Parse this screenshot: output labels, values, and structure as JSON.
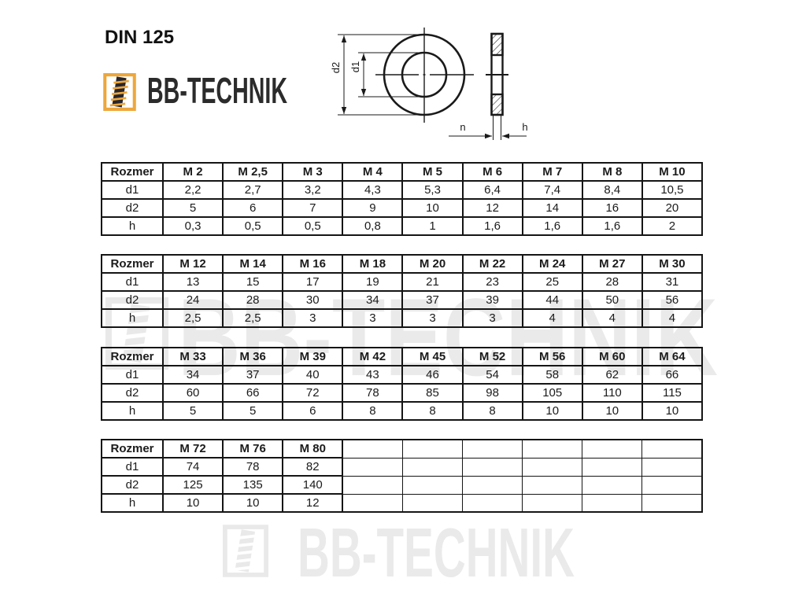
{
  "page": {
    "title": "DIN 125",
    "brand": "BB-TECHNIK",
    "watermark_text": "BB-TECHNIK"
  },
  "colors": {
    "logo_gold": "#EDA73C",
    "logo_dark": "#26262E",
    "brand_text": "#2B2B2B",
    "watermark_gray": "#EAEAEA",
    "line_black": "#1A1A1A"
  },
  "drawing": {
    "labels": {
      "d1": "d1",
      "d2": "d2",
      "n": "n",
      "h": "h"
    }
  },
  "tables": [
    {
      "header": [
        "Rozmer",
        "M 2",
        "M 2,5",
        "M 3",
        "M 4",
        "M 5",
        "M 6",
        "M 7",
        "M 8",
        "M 10"
      ],
      "rows": [
        [
          "d1",
          "2,2",
          "2,7",
          "3,2",
          "4,3",
          "5,3",
          "6,4",
          "7,4",
          "8,4",
          "10,5"
        ],
        [
          "d2",
          "5",
          "6",
          "7",
          "9",
          "10",
          "12",
          "14",
          "16",
          "20"
        ],
        [
          "h",
          "0,3",
          "0,5",
          "0,5",
          "0,8",
          "1",
          "1,6",
          "1,6",
          "1,6",
          "2"
        ]
      ]
    },
    {
      "header": [
        "Rozmer",
        "M 12",
        "M 14",
        "M 16",
        "M 18",
        "M 20",
        "M 22",
        "M 24",
        "M 27",
        "M 30"
      ],
      "rows": [
        [
          "d1",
          "13",
          "15",
          "17",
          "19",
          "21",
          "23",
          "25",
          "28",
          "31"
        ],
        [
          "d2",
          "24",
          "28",
          "30",
          "34",
          "37",
          "39",
          "44",
          "50",
          "56"
        ],
        [
          "h",
          "2,5",
          "2,5",
          "3",
          "3",
          "3",
          "3",
          "4",
          "4",
          "4"
        ]
      ]
    },
    {
      "header": [
        "Rozmer",
        "M 33",
        "M 36",
        "M 39",
        "M 42",
        "M 45",
        "M 52",
        "M 56",
        "M 60",
        "M 64"
      ],
      "rows": [
        [
          "d1",
          "34",
          "37",
          "40",
          "43",
          "46",
          "54",
          "58",
          "62",
          "66"
        ],
        [
          "d2",
          "60",
          "66",
          "72",
          "78",
          "85",
          "98",
          "105",
          "110",
          "115"
        ],
        [
          "h",
          "5",
          "5",
          "6",
          "8",
          "8",
          "8",
          "10",
          "10",
          "10"
        ]
      ]
    },
    {
      "header": [
        "Rozmer",
        "M 72",
        "M 76",
        "M 80",
        "",
        "",
        "",
        "",
        "",
        ""
      ],
      "rows": [
        [
          "d1",
          "74",
          "78",
          "82",
          "",
          "",
          "",
          "",
          "",
          ""
        ],
        [
          "d2",
          "125",
          "135",
          "140",
          "",
          "",
          "",
          "",
          "",
          ""
        ],
        [
          "h",
          "10",
          "10",
          "12",
          "",
          "",
          "",
          "",
          "",
          ""
        ]
      ]
    }
  ]
}
